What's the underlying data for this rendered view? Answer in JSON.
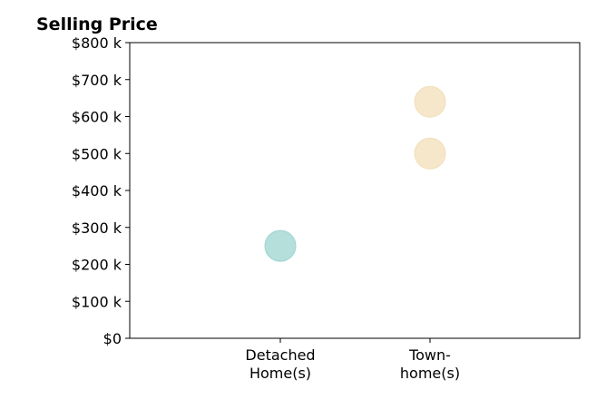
{
  "chart_data": {
    "type": "scatter",
    "title": "Selling Price",
    "xlabel": "",
    "ylabel": "",
    "categories": [
      "Detached\nHome(s)",
      "Town-\nhome(s)"
    ],
    "ylim": [
      0,
      800000
    ],
    "yticks": [
      0,
      100000,
      200000,
      300000,
      400000,
      500000,
      600000,
      700000,
      800000
    ],
    "ytick_labels": [
      "$0",
      "$100 k",
      "$200 k",
      "$300 k",
      "$400 k",
      "$500 k",
      "$600 k",
      "$700 k",
      "$800 k"
    ],
    "grid": false,
    "points": [
      {
        "category": "Detached\nHome(s)",
        "value": 250000,
        "color": "#b4dfdb"
      },
      {
        "category": "Town-\nhome(s)",
        "value": 500000,
        "color": "#f6e7cb"
      },
      {
        "category": "Town-\nhome(s)",
        "value": 640000,
        "color": "#f6e7cb"
      }
    ]
  }
}
